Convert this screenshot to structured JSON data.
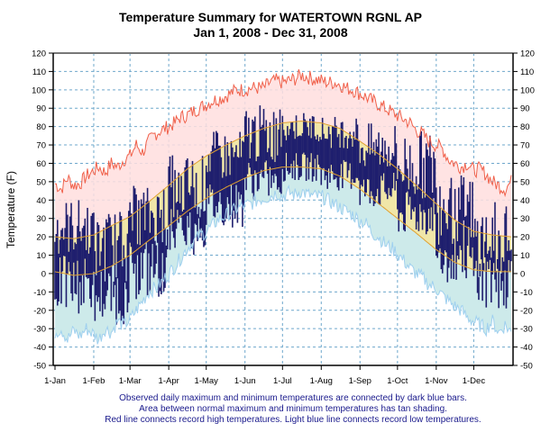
{
  "chart_data": {
    "type": "bar",
    "title": "Temperature Summary for WATERTOWN RGNL AP",
    "subtitle": "Jan  1, 2008 - Dec 31, 2008",
    "ylabel": "Temperature (F)",
    "xlabel": "",
    "ylim": [
      -50,
      120
    ],
    "yticks": [
      -50,
      -40,
      -30,
      -20,
      -10,
      0,
      10,
      20,
      30,
      40,
      50,
      60,
      70,
      80,
      90,
      100,
      110,
      120
    ],
    "xtick_labels": [
      "1-Jan",
      "1-Feb",
      "1-Mar",
      "1-Apr",
      "1-May",
      "1-Jun",
      "1-Jul",
      "1-Aug",
      "1-Sep",
      "1-Oct",
      "1-Nov",
      "1-Dec"
    ],
    "xtick_days": [
      0,
      31,
      60,
      91,
      121,
      152,
      182,
      213,
      244,
      274,
      305,
      335
    ],
    "days_in_year": 366,
    "grid": true,
    "series": [
      {
        "name": "Record High",
        "color": "#f0604a",
        "fill": "#ffdede",
        "points": [
          [
            0,
            49
          ],
          [
            5,
            46
          ],
          [
            10,
            52
          ],
          [
            15,
            48
          ],
          [
            20,
            49
          ],
          [
            25,
            53
          ],
          [
            31,
            56
          ],
          [
            35,
            58
          ],
          [
            40,
            55
          ],
          [
            45,
            60
          ],
          [
            50,
            58
          ],
          [
            55,
            62
          ],
          [
            60,
            64
          ],
          [
            65,
            70
          ],
          [
            70,
            66
          ],
          [
            75,
            72
          ],
          [
            80,
            76
          ],
          [
            85,
            78
          ],
          [
            91,
            80
          ],
          [
            96,
            82
          ],
          [
            100,
            85
          ],
          [
            105,
            86
          ],
          [
            110,
            88
          ],
          [
            115,
            90
          ],
          [
            121,
            92
          ],
          [
            126,
            94
          ],
          [
            130,
            95
          ],
          [
            135,
            96
          ],
          [
            140,
            98
          ],
          [
            145,
            100
          ],
          [
            152,
            100
          ],
          [
            157,
            101
          ],
          [
            162,
            101
          ],
          [
            167,
            101
          ],
          [
            172,
            104
          ],
          [
            177,
            105
          ],
          [
            182,
            104
          ],
          [
            187,
            105
          ],
          [
            192,
            106
          ],
          [
            197,
            108
          ],
          [
            202,
            107
          ],
          [
            207,
            106
          ],
          [
            213,
            105
          ],
          [
            218,
            104
          ],
          [
            223,
            104
          ],
          [
            228,
            103
          ],
          [
            233,
            101
          ],
          [
            238,
            100
          ],
          [
            244,
            98
          ],
          [
            249,
            96
          ],
          [
            254,
            94
          ],
          [
            259,
            92
          ],
          [
            264,
            90
          ],
          [
            269,
            88
          ],
          [
            274,
            86
          ],
          [
            279,
            84
          ],
          [
            284,
            82
          ],
          [
            289,
            78
          ],
          [
            294,
            76
          ],
          [
            299,
            72
          ],
          [
            305,
            70
          ],
          [
            310,
            68
          ],
          [
            315,
            62
          ],
          [
            320,
            60
          ],
          [
            325,
            58
          ],
          [
            330,
            60
          ],
          [
            335,
            56
          ],
          [
            340,
            57
          ],
          [
            345,
            54
          ],
          [
            350,
            50
          ],
          [
            355,
            48
          ],
          [
            360,
            46
          ],
          [
            365,
            50
          ]
        ]
      },
      {
        "name": "Normal High",
        "color": "#e0a030",
        "fill": "#f0e6a8",
        "points": [
          [
            0,
            20
          ],
          [
            15,
            19
          ],
          [
            31,
            21
          ],
          [
            45,
            26
          ],
          [
            60,
            31
          ],
          [
            75,
            39
          ],
          [
            91,
            48
          ],
          [
            106,
            57
          ],
          [
            121,
            64
          ],
          [
            137,
            70
          ],
          [
            152,
            75
          ],
          [
            167,
            79
          ],
          [
            182,
            82
          ],
          [
            197,
            83
          ],
          [
            213,
            82
          ],
          [
            228,
            79
          ],
          [
            244,
            72
          ],
          [
            259,
            65
          ],
          [
            274,
            57
          ],
          [
            289,
            48
          ],
          [
            305,
            38
          ],
          [
            320,
            29
          ],
          [
            335,
            23
          ],
          [
            350,
            21
          ],
          [
            365,
            20
          ]
        ]
      },
      {
        "name": "Normal Low",
        "color": "#e0a030",
        "points": [
          [
            0,
            1
          ],
          [
            15,
            -1
          ],
          [
            31,
            0
          ],
          [
            45,
            4
          ],
          [
            60,
            10
          ],
          [
            75,
            18
          ],
          [
            91,
            26
          ],
          [
            106,
            34
          ],
          [
            121,
            41
          ],
          [
            137,
            47
          ],
          [
            152,
            52
          ],
          [
            167,
            56
          ],
          [
            182,
            58
          ],
          [
            197,
            58
          ],
          [
            213,
            57
          ],
          [
            228,
            53
          ],
          [
            244,
            46
          ],
          [
            259,
            38
          ],
          [
            274,
            30
          ],
          [
            289,
            22
          ],
          [
            305,
            13
          ],
          [
            320,
            6
          ],
          [
            335,
            2
          ],
          [
            350,
            1
          ],
          [
            365,
            1
          ]
        ]
      },
      {
        "name": "Record Low",
        "color": "#9fd0ef",
        "fill": "#cdeaea",
        "points": [
          [
            0,
            -32
          ],
          [
            5,
            -30
          ],
          [
            10,
            -36
          ],
          [
            15,
            -31
          ],
          [
            20,
            -34
          ],
          [
            25,
            -30
          ],
          [
            31,
            -33
          ],
          [
            35,
            -36
          ],
          [
            40,
            -30
          ],
          [
            45,
            -32
          ],
          [
            50,
            -26
          ],
          [
            55,
            -28
          ],
          [
            60,
            -25
          ],
          [
            65,
            -20
          ],
          [
            70,
            -15
          ],
          [
            75,
            -10
          ],
          [
            80,
            -8
          ],
          [
            85,
            -5
          ],
          [
            91,
            0
          ],
          [
            96,
            4
          ],
          [
            100,
            8
          ],
          [
            105,
            13
          ],
          [
            110,
            17
          ],
          [
            115,
            20
          ],
          [
            121,
            23
          ],
          [
            126,
            26
          ],
          [
            130,
            29
          ],
          [
            135,
            31
          ],
          [
            140,
            33
          ],
          [
            145,
            35
          ],
          [
            152,
            37
          ],
          [
            157,
            38
          ],
          [
            162,
            40
          ],
          [
            167,
            41
          ],
          [
            172,
            42
          ],
          [
            177,
            44
          ],
          [
            182,
            42
          ],
          [
            187,
            44
          ],
          [
            192,
            43
          ],
          [
            197,
            45
          ],
          [
            202,
            43
          ],
          [
            207,
            42
          ],
          [
            213,
            42
          ],
          [
            218,
            40
          ],
          [
            223,
            38
          ],
          [
            228,
            36
          ],
          [
            233,
            34
          ],
          [
            238,
            32
          ],
          [
            244,
            29
          ],
          [
            249,
            27
          ],
          [
            254,
            22
          ],
          [
            259,
            20
          ],
          [
            264,
            16
          ],
          [
            269,
            14
          ],
          [
            274,
            11
          ],
          [
            279,
            7
          ],
          [
            284,
            3
          ],
          [
            289,
            0
          ],
          [
            294,
            -2
          ],
          [
            299,
            -6
          ],
          [
            305,
            -8
          ],
          [
            310,
            -12
          ],
          [
            315,
            -15
          ],
          [
            320,
            -18
          ],
          [
            325,
            -20
          ],
          [
            330,
            -24
          ],
          [
            335,
            -26
          ],
          [
            340,
            -28
          ],
          [
            345,
            -30
          ],
          [
            350,
            -26
          ],
          [
            355,
            -32
          ],
          [
            360,
            -28
          ],
          [
            365,
            -32
          ]
        ]
      }
    ],
    "observed": {
      "name": "Observed daily max/min",
      "color": "#1f1f6e",
      "monthly_ranges": [
        {
          "month": "Jan",
          "max": [
            10,
            41
          ],
          "min": [
            -22,
            10
          ]
        },
        {
          "month": "Feb",
          "max": [
            -5,
            35
          ],
          "min": [
            -28,
            5
          ]
        },
        {
          "month": "Mar",
          "max": [
            15,
            48
          ],
          "min": [
            -15,
            20
          ]
        },
        {
          "month": "Apr",
          "max": [
            30,
            65
          ],
          "min": [
            10,
            38
          ]
        },
        {
          "month": "May",
          "max": [
            50,
            78
          ],
          "min": [
            25,
            50
          ]
        },
        {
          "month": "Jun",
          "max": [
            60,
            92
          ],
          "min": [
            40,
            62
          ]
        },
        {
          "month": "Jul",
          "max": [
            72,
            88
          ],
          "min": [
            50,
            66
          ]
        },
        {
          "month": "Aug",
          "max": [
            68,
            86
          ],
          "min": [
            45,
            62
          ]
        },
        {
          "month": "Sep",
          "max": [
            55,
            82
          ],
          "min": [
            35,
            55
          ]
        },
        {
          "month": "Oct",
          "max": [
            40,
            78
          ],
          "min": [
            20,
            45
          ]
        },
        {
          "month": "Nov",
          "max": [
            15,
            55
          ],
          "min": [
            -5,
            30
          ]
        },
        {
          "month": "Dec",
          "max": [
            -2,
            40
          ],
          "min": [
            -20,
            15
          ]
        }
      ]
    }
  },
  "notes": [
    "Observed daily maximum and minimum temperatures are connected by dark blue bars.",
    "Area between normal maximum and minimum temperatures has tan shading.",
    "Red line connects record high temperatures. Light blue line connects record low temperatures."
  ]
}
